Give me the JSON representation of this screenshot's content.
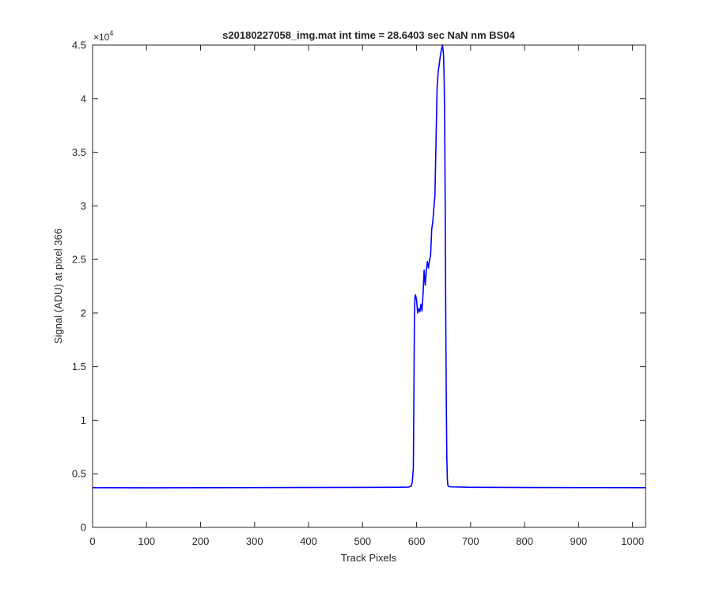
{
  "chart_data": {
    "type": "line",
    "title": "s20180227058_img.mat int time = 28.6403 sec  NaN nm BS04",
    "xlabel": "Track Pixels",
    "ylabel": "Signal (ADU) at pixel 366",
    "y_exponent_label": "×10",
    "y_exponent_power": "4",
    "xlim": [
      0,
      1024
    ],
    "ylim": [
      0,
      45000
    ],
    "x_ticks": [
      0,
      100,
      200,
      300,
      400,
      500,
      600,
      700,
      800,
      900,
      1000
    ],
    "x_tick_labels": [
      "0",
      "100",
      "200",
      "300",
      "400",
      "500",
      "600",
      "700",
      "800",
      "900",
      "1000"
    ],
    "y_ticks": [
      0,
      5000,
      10000,
      15000,
      20000,
      25000,
      30000,
      35000,
      40000,
      45000
    ],
    "y_tick_labels": [
      "0",
      "0.5",
      "1",
      "1.5",
      "2",
      "2.5",
      "3",
      "3.5",
      "4",
      "4.5"
    ],
    "grid": false,
    "line_color": "#0000ff",
    "series": [
      {
        "x": [
          0,
          100,
          200,
          300,
          400,
          500,
          560,
          585,
          590,
          592,
          594,
          595,
          596,
          597,
          598,
          600,
          602,
          604,
          606,
          608,
          610,
          612,
          614,
          616,
          618,
          620,
          622,
          624,
          626,
          628,
          630,
          632,
          634,
          636,
          638,
          640,
          642,
          644,
          646,
          648,
          650,
          651,
          652,
          653,
          654,
          655,
          656,
          657,
          658,
          660,
          665,
          700,
          800,
          900,
          1024
        ],
        "y": [
          3700,
          3690,
          3700,
          3710,
          3720,
          3730,
          3740,
          3760,
          3850,
          4200,
          5500,
          12000,
          19500,
          21500,
          21700,
          21200,
          20000,
          20400,
          20100,
          20800,
          20200,
          21800,
          24000,
          22600,
          23900,
          24800,
          24200,
          24900,
          25400,
          27800,
          28500,
          29800,
          31000,
          36000,
          41000,
          42500,
          43200,
          44000,
          44600,
          45000,
          44000,
          42000,
          38000,
          30000,
          20000,
          12000,
          6500,
          4500,
          3900,
          3800,
          3780,
          3740,
          3720,
          3710,
          3700
        ]
      }
    ]
  }
}
